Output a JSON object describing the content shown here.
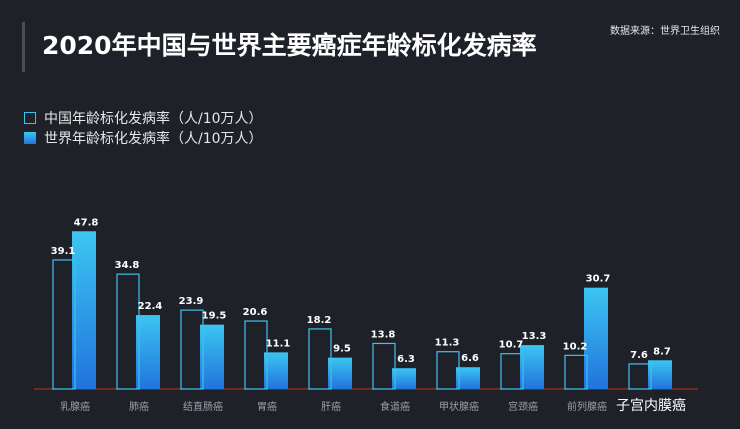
{
  "title": "2020年中国与世界主要癌症年龄标化发病率",
  "source": "数据来源：世界卫生组织",
  "colors": {
    "background": "#1e2128",
    "china_outline": "#3cc3ef",
    "world_top": "#3cc6f2",
    "world_bottom": "#2173dc",
    "axis": "#c62f1e"
  },
  "chart_data": {
    "type": "bar",
    "categories": [
      "乳腺癌",
      "肺癌",
      "结直肠癌",
      "胃癌",
      "肝癌",
      "食道癌",
      "甲状腺癌",
      "宫颈癌",
      "前列腺癌",
      "子宫内膜癌"
    ],
    "series": [
      {
        "name": "中国年龄标化发病率（人/10万人）",
        "values": [
          39.1,
          34.8,
          23.9,
          20.6,
          18.2,
          13.8,
          11.3,
          10.7,
          10.2,
          7.6
        ]
      },
      {
        "name": "世界年龄标化发病率（人/10万人）",
        "values": [
          47.8,
          22.4,
          19.5,
          11.1,
          9.5,
          6.3,
          6.6,
          13.3,
          30.7,
          8.7
        ]
      }
    ],
    "ylim": [
      0,
      50
    ],
    "legend": "top-left",
    "grid": false
  }
}
